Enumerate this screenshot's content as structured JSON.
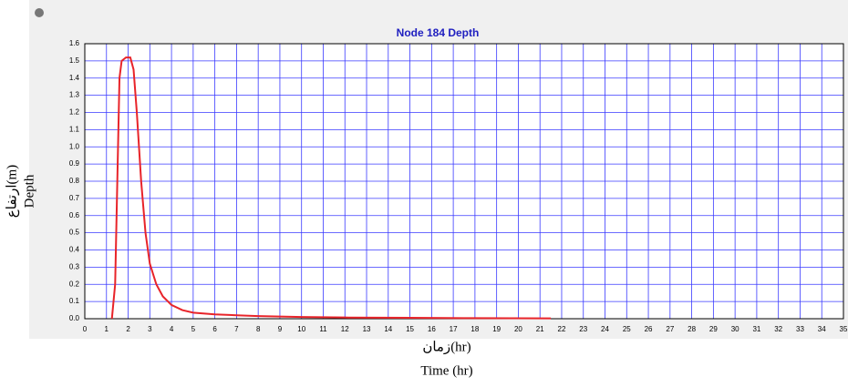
{
  "chart_data": {
    "type": "line",
    "title": "Node 184 Depth",
    "xlabel": [
      "زمان(hr)",
      "Time (hr)"
    ],
    "ylabel": [
      "ارتفاع(m)",
      "Depth"
    ],
    "x": [
      1.25,
      1.4,
      1.5,
      1.6,
      1.7,
      1.9,
      2.1,
      2.25,
      2.4,
      2.6,
      2.8,
      3,
      3.3,
      3.6,
      4,
      4.5,
      5,
      6,
      7,
      8,
      10,
      12,
      15,
      18,
      21.5
    ],
    "series": [
      {
        "name": "Node 184 Depth",
        "color": "#e8242a",
        "values": [
          0,
          0.2,
          0.8,
          1.4,
          1.5,
          1.52,
          1.52,
          1.45,
          1.2,
          0.8,
          0.5,
          0.32,
          0.2,
          0.13,
          0.08,
          0.05,
          0.035,
          0.025,
          0.02,
          0.015,
          0.01,
          0.007,
          0.005,
          0.003,
          0.002
        ]
      }
    ],
    "xlim": [
      0,
      35
    ],
    "xticks": [
      0,
      1,
      2,
      3,
      4,
      5,
      6,
      7,
      8,
      9,
      10,
      11,
      12,
      13,
      14,
      15,
      16,
      17,
      18,
      19,
      20,
      21,
      22,
      23,
      24,
      25,
      26,
      27,
      28,
      29,
      30,
      31,
      32,
      33,
      34,
      35
    ],
    "ylim": [
      0,
      1.6
    ],
    "yticks": [
      {
        "value": 0,
        "label": "0.0"
      },
      0.1,
      0.2,
      0.3,
      0.4,
      0.5,
      0.6,
      0.7,
      0.8,
      0.9,
      {
        "value": 1,
        "label": "1.0"
      },
      1.1,
      1.2,
      1.3,
      1.4,
      1.5,
      1.6
    ],
    "grid": true,
    "grid_color": "#3a3aff"
  }
}
